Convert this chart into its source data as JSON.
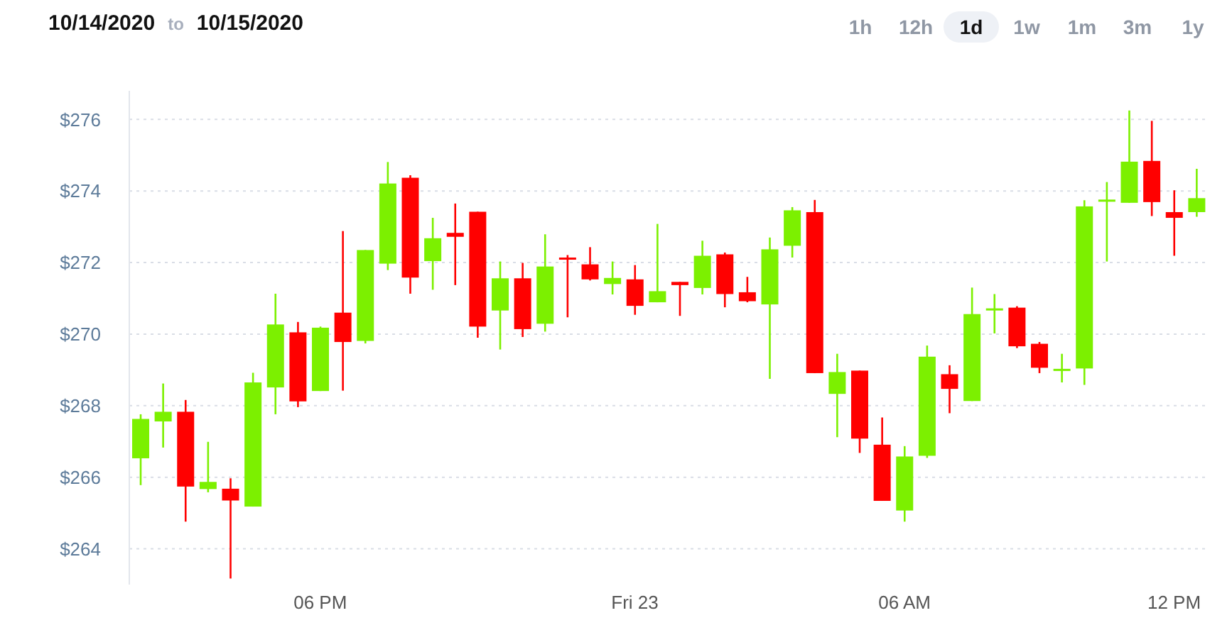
{
  "chart_data": {
    "type": "candlestick",
    "annotations": [
      "10/14/2020",
      "to",
      "10/15/2020",
      "1h",
      "12h",
      "1d",
      "1w",
      "1m",
      "3m",
      "1y"
    ],
    "categories": [
      null,
      null,
      null,
      null,
      null,
      null,
      null,
      null,
      "06 PM",
      null,
      null,
      null,
      null,
      null,
      null,
      null,
      null,
      null,
      null,
      null,
      null,
      null,
      "Fri 23",
      null,
      null,
      null,
      null,
      null,
      null,
      null,
      null,
      null,
      null,
      null,
      "06 AM",
      null,
      null,
      null,
      null,
      null,
      null,
      null,
      null,
      null,
      null,
      null,
      "12 PM",
      null
    ],
    "ohlc": [
      [
        266.53,
        267.76,
        265.78,
        267.63
      ],
      [
        267.56,
        268.62,
        266.83,
        267.83
      ],
      [
        267.83,
        268.16,
        264.76,
        265.74
      ],
      [
        265.67,
        266.99,
        265.58,
        265.87
      ],
      [
        265.68,
        265.97,
        263.17,
        265.35
      ],
      [
        265.18,
        268.92,
        265.18,
        268.65
      ],
      [
        268.51,
        271.13,
        267.76,
        270.27
      ],
      [
        270.05,
        270.34,
        267.96,
        268.12
      ],
      [
        268.41,
        270.21,
        268.41,
        270.18
      ],
      [
        270.6,
        272.88,
        268.42,
        269.78
      ],
      [
        269.81,
        272.35,
        269.74,
        272.35
      ],
      [
        271.97,
        274.81,
        271.79,
        274.21
      ],
      [
        274.37,
        274.44,
        271.13,
        271.58
      ],
      [
        272.04,
        273.25,
        271.24,
        272.68
      ],
      [
        272.83,
        273.65,
        271.37,
        272.72
      ],
      [
        273.42,
        273.42,
        269.9,
        270.21
      ],
      [
        270.66,
        272.03,
        269.57,
        271.56
      ],
      [
        271.56,
        271.99,
        269.92,
        270.14
      ],
      [
        270.29,
        272.79,
        270.07,
        271.89
      ],
      [
        272.14,
        272.21,
        270.47,
        272.11
      ],
      [
        271.95,
        272.43,
        271.5,
        271.53
      ],
      [
        271.4,
        272.03,
        271.11,
        271.57
      ],
      [
        271.53,
        271.93,
        270.54,
        270.79
      ],
      [
        270.89,
        273.08,
        270.89,
        271.2
      ],
      [
        271.46,
        271.46,
        270.51,
        271.37
      ],
      [
        271.29,
        272.61,
        271.11,
        272.19
      ],
      [
        272.23,
        272.28,
        270.75,
        271.12
      ],
      [
        271.17,
        271.6,
        270.89,
        270.92
      ],
      [
        270.83,
        272.7,
        268.75,
        272.37
      ],
      [
        272.47,
        273.55,
        272.14,
        273.46
      ],
      [
        273.41,
        273.75,
        268.91,
        268.91
      ],
      [
        268.33,
        269.45,
        267.12,
        268.94
      ],
      [
        268.98,
        268.98,
        266.68,
        267.08
      ],
      [
        266.91,
        267.67,
        265.34,
        265.34
      ],
      [
        265.07,
        266.87,
        264.76,
        266.58
      ],
      [
        266.6,
        269.68,
        266.54,
        269.37
      ],
      [
        268.88,
        269.13,
        267.79,
        268.47
      ],
      [
        268.13,
        271.3,
        268.13,
        270.56
      ],
      [
        270.68,
        271.12,
        270.02,
        270.72
      ],
      [
        270.74,
        270.78,
        269.61,
        269.66
      ],
      [
        269.73,
        269.78,
        268.91,
        269.06
      ],
      [
        269.0,
        269.45,
        268.65,
        269.03
      ],
      [
        269.04,
        273.74,
        268.58,
        273.57
      ],
      [
        273.72,
        274.25,
        272.03,
        273.76
      ],
      [
        273.67,
        276.25,
        273.67,
        274.82
      ],
      [
        274.84,
        275.96,
        273.3,
        273.69
      ],
      [
        273.41,
        274.02,
        272.19,
        273.25
      ],
      [
        273.41,
        274.62,
        273.28,
        273.8
      ]
    ],
    "colors": [
      "#7cf000",
      "#7cf000",
      "#ff0000",
      "#7cf000",
      "#ff0000",
      "#7cf000",
      "#7cf000",
      "#ff0000",
      "#7cf000",
      "#ff0000",
      "#7cf000",
      "#7cf000",
      "#ff0000",
      "#7cf000",
      "#ff0000",
      "#ff0000",
      "#7cf000",
      "#ff0000",
      "#7cf000",
      "#ff0000",
      "#ff0000",
      "#7cf000",
      "#ff0000",
      "#7cf000",
      "#ff0000",
      "#7cf000",
      "#ff0000",
      "#ff0000",
      "#7cf000",
      "#7cf000",
      "#ff0000",
      "#7cf000",
      "#ff0000",
      "#ff0000",
      "#7cf000",
      "#7cf000",
      "#ff0000",
      "#7cf000",
      "#7cf000",
      "#ff0000",
      "#ff0000",
      "#7cf000",
      "#7cf000",
      "#7cf000",
      "#7cf000",
      "#ff0000",
      "#ff0000",
      "#7cf000"
    ],
    "ylim": [
      263,
      276.8
    ],
    "yticks": [
      {
        "value": 264,
        "label": "$264"
      },
      {
        "value": 266,
        "label": "$266"
      },
      {
        "value": 268,
        "label": "$268"
      },
      {
        "value": 270,
        "label": "$270"
      },
      {
        "value": 272,
        "label": "$272"
      },
      {
        "value": 274,
        "label": "$274"
      },
      {
        "value": 276,
        "label": "$276"
      }
    ],
    "grid": "y"
  }
}
